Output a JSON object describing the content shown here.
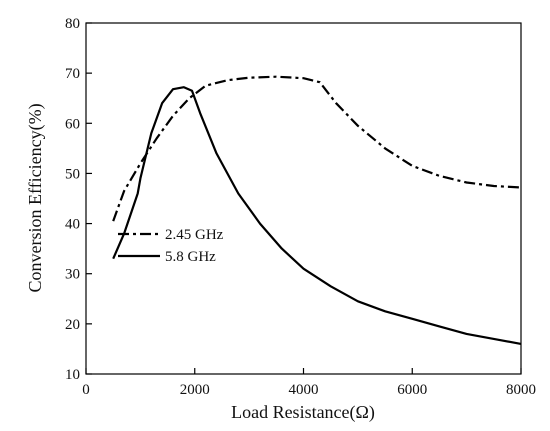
{
  "chart_data": {
    "type": "line",
    "title": "",
    "xlabel": "Load Resistance(Ω)",
    "ylabel": "Conversion Efficiency(%)",
    "xlim": [
      0,
      8000
    ],
    "ylim": [
      10,
      80
    ],
    "xticks": [
      0,
      2000,
      4000,
      6000,
      8000
    ],
    "yticks": [
      10,
      20,
      30,
      40,
      50,
      60,
      70,
      80
    ],
    "grid": false,
    "legend_position": "middle-left",
    "series": [
      {
        "name": "2.45 GHz",
        "style": "dash-dot",
        "color": "#000000",
        "x": [
          500,
          700,
          1000,
          1300,
          1600,
          1900,
          2200,
          2600,
          3000,
          3500,
          4000,
          4300,
          4600,
          5000,
          5500,
          6000,
          6500,
          7000,
          7500,
          8000
        ],
        "y": [
          40.5,
          46.5,
          52,
          57,
          61.5,
          65,
          67.5,
          68.6,
          69.1,
          69.3,
          69.0,
          68.2,
          64,
          59.5,
          55,
          51.5,
          49.5,
          48.2,
          47.5,
          47.2
        ]
      },
      {
        "name": "5.8 GHz",
        "style": "solid",
        "color": "#000000",
        "x": [
          500,
          700,
          950,
          1000,
          1200,
          1400,
          1600,
          1800,
          1950,
          2100,
          2400,
          2800,
          3200,
          3600,
          4000,
          4500,
          5000,
          5500,
          6000,
          6500,
          7000,
          7500,
          8000
        ],
        "y": [
          33,
          38,
          46,
          49,
          58,
          64,
          66.8,
          67.2,
          66.5,
          62,
          54,
          46,
          40,
          35,
          31,
          27.5,
          24.5,
          22.5,
          21,
          19.5,
          18,
          17,
          16
        ]
      }
    ]
  }
}
